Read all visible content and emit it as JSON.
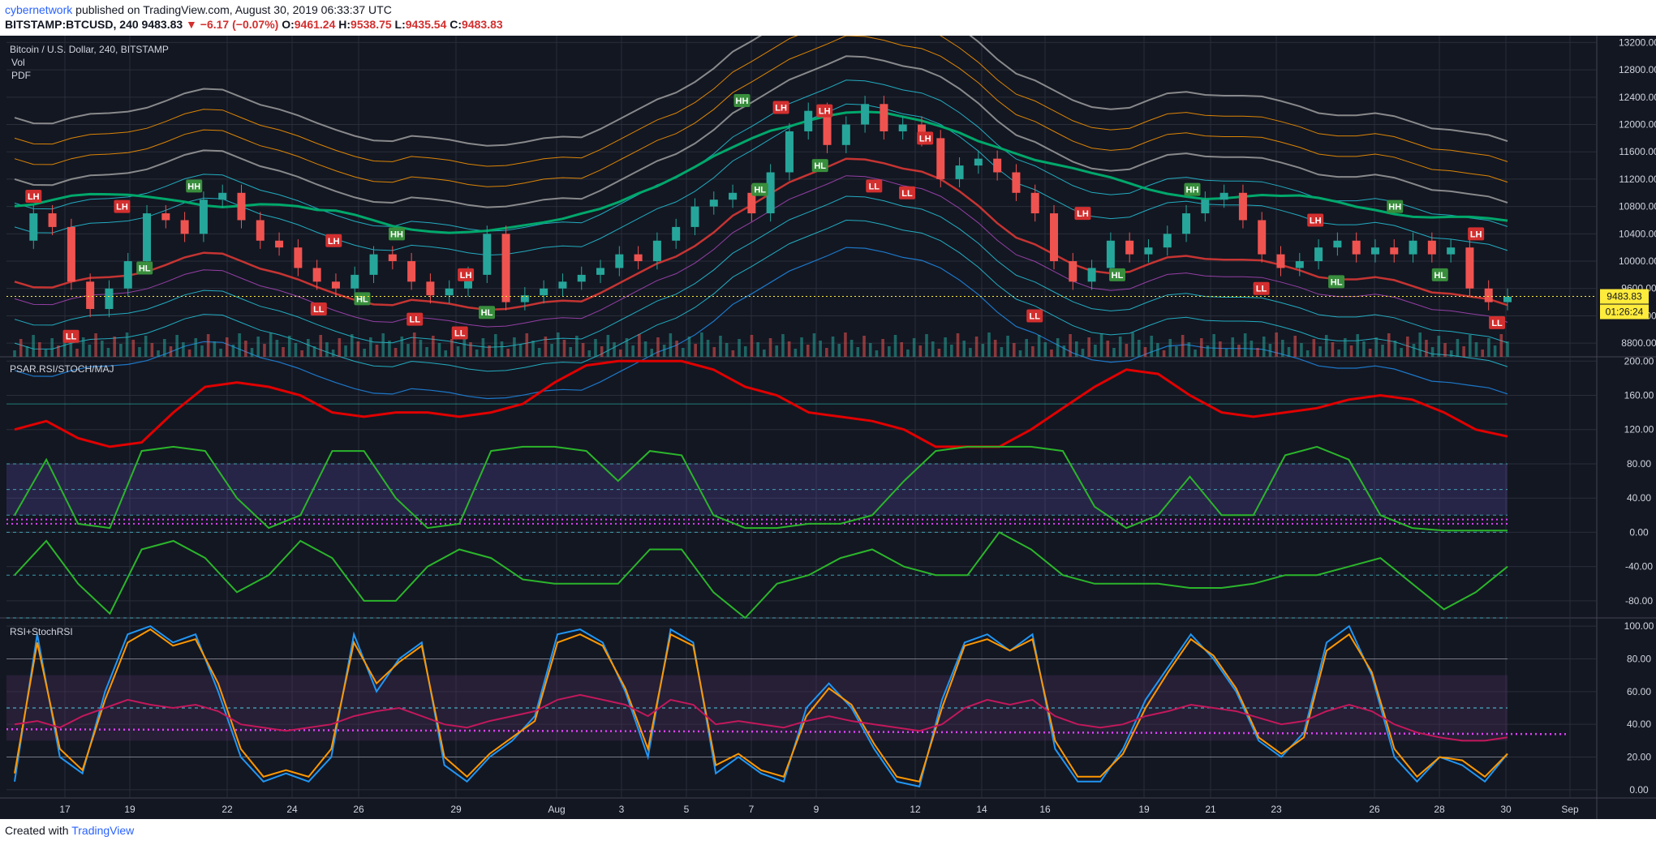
{
  "header": {
    "author": "cybernetwork",
    "published_text": "published on TradingView.com, August 30, 2019 06:33:37 UTC",
    "symbol": "BITSTAMP:BTCUSD, 240",
    "last": "9483.83",
    "change": "▼ −6.17 (−0.07%)",
    "o_label": "O:",
    "o": "9461.24",
    "h_label": "H:",
    "h": "9538.75",
    "l_label": "L:",
    "l": "9435.54",
    "c_label": "C:",
    "c": "9483.83"
  },
  "footer": {
    "created_with": "Created with",
    "brand": "TradingView"
  },
  "panels": {
    "main": {
      "title": "Bitcoin / U.S. Dollar, 240, BITSTAMP",
      "vol": "Vol",
      "pdf": "PDF",
      "price_tag": "9483.83",
      "timer_tag": "01:26:24"
    },
    "psar": {
      "title": "PSAR.RSI/STOCH/MAJ"
    },
    "rsi": {
      "title": "RSI+StochRSI"
    }
  },
  "colors": {
    "background": "#131722",
    "up": "#26a69a",
    "down": "#ef5350",
    "grid": "#2a2e39",
    "axis_text": "#d1d4dc"
  },
  "chart_data": [
    {
      "type": "candlestick",
      "title": "Bitcoin / U.S. Dollar, 240, BITSTAMP",
      "x_ticks": [
        "17",
        "19",
        "22",
        "24",
        "26",
        "29",
        "Aug",
        "3",
        "5",
        "7",
        "9",
        "12",
        "14",
        "16",
        "19",
        "21",
        "23",
        "26",
        "28",
        "30",
        "Sep"
      ],
      "y_ticks": [
        "13200.00",
        "12800.00",
        "12400.00",
        "12000.00",
        "11600.00",
        "11200.00",
        "10800.00",
        "10400.00",
        "10000.00",
        "9600.00",
        "9200.00",
        "8800.00"
      ],
      "ylim": [
        8600,
        13300
      ],
      "close_path": [
        10300,
        10700,
        10500,
        9700,
        9300,
        9600,
        10000,
        10700,
        10600,
        10400,
        10900,
        11000,
        10600,
        10300,
        10200,
        9900,
        9700,
        9600,
        9800,
        10100,
        10000,
        9700,
        9500,
        9600,
        9800,
        10400,
        9400,
        9500,
        9600,
        9700,
        9800,
        9900,
        10100,
        10000,
        10300,
        10500,
        10800,
        10900,
        11000,
        10700,
        11300,
        11900,
        12200,
        11700,
        12000,
        12300,
        11900,
        12000,
        11800,
        11200,
        11400,
        11500,
        11300,
        11000,
        10700,
        10000,
        9700,
        9900,
        10300,
        10100,
        10200,
        10400,
        10700,
        10900,
        11000,
        10600,
        10100,
        9900,
        10000,
        10200,
        10300,
        10100,
        10200,
        10100,
        10300,
        10100,
        10200,
        9600,
        9400,
        9480
      ],
      "markers": [
        {
          "label": "LH",
          "type": "high",
          "x": 0.018,
          "price": 10950
        },
        {
          "label": "LL",
          "type": "low",
          "x": 0.043,
          "price": 8900
        },
        {
          "label": "LH",
          "type": "high",
          "x": 0.077,
          "price": 10800
        },
        {
          "label": "HL",
          "type": "low",
          "x": 0.092,
          "price": 9900
        },
        {
          "label": "HH",
          "type": "high",
          "x": 0.125,
          "price": 11100
        },
        {
          "label": "LH",
          "type": "high",
          "x": 0.218,
          "price": 10300
        },
        {
          "label": "LL",
          "type": "low",
          "x": 0.208,
          "price": 9300
        },
        {
          "label": "HL",
          "type": "low",
          "x": 0.237,
          "price": 9450
        },
        {
          "label": "HH",
          "type": "high",
          "x": 0.26,
          "price": 10400
        },
        {
          "label": "LL",
          "type": "low",
          "x": 0.272,
          "price": 9150
        },
        {
          "label": "LL",
          "type": "low",
          "x": 0.302,
          "price": 8950
        },
        {
          "label": "LH",
          "type": "high",
          "x": 0.306,
          "price": 9800
        },
        {
          "label": "HL",
          "type": "low",
          "x": 0.32,
          "price": 9250
        },
        {
          "label": "HH",
          "type": "high",
          "x": 0.49,
          "price": 12350
        },
        {
          "label": "HL",
          "type": "low",
          "x": 0.502,
          "price": 11050
        },
        {
          "label": "LH",
          "type": "high",
          "x": 0.516,
          "price": 12250
        },
        {
          "label": "HL",
          "type": "low",
          "x": 0.542,
          "price": 11400
        },
        {
          "label": "LH",
          "type": "high",
          "x": 0.545,
          "price": 12200
        },
        {
          "label": "LL",
          "type": "low",
          "x": 0.578,
          "price": 11100
        },
        {
          "label": "LL",
          "type": "low",
          "x": 0.6,
          "price": 11000
        },
        {
          "label": "LH",
          "type": "high",
          "x": 0.612,
          "price": 11800
        },
        {
          "label": "LL",
          "type": "low",
          "x": 0.685,
          "price": 9200
        },
        {
          "label": "LH",
          "type": "high",
          "x": 0.717,
          "price": 10700
        },
        {
          "label": "HL",
          "type": "low",
          "x": 0.74,
          "price": 9800
        },
        {
          "label": "HH",
          "type": "high",
          "x": 0.79,
          "price": 11050
        },
        {
          "label": "LL",
          "type": "low",
          "x": 0.836,
          "price": 9600
        },
        {
          "label": "LH",
          "type": "high",
          "x": 0.872,
          "price": 10600
        },
        {
          "label": "HL",
          "type": "low",
          "x": 0.886,
          "price": 9700
        },
        {
          "label": "HH",
          "type": "high",
          "x": 0.925,
          "price": 10800
        },
        {
          "label": "HL",
          "type": "low",
          "x": 0.955,
          "price": 9800
        },
        {
          "label": "LH",
          "type": "high",
          "x": 0.979,
          "price": 10400
        },
        {
          "label": "LL",
          "type": "low",
          "x": 0.993,
          "price": 9100
        }
      ]
    },
    {
      "type": "line",
      "title": "PSAR.RSI/STOCH/MAJ",
      "y_ticks": [
        "200.00",
        "160.00",
        "120.00",
        "80.00",
        "40.00",
        "0.00",
        "-40.00",
        "-80.00"
      ],
      "ylim": [
        -100,
        205
      ],
      "series": [
        {
          "color": "#e00000",
          "values": [
            120,
            130,
            110,
            100,
            105,
            140,
            170,
            175,
            170,
            160,
            140,
            135,
            140,
            140,
            135,
            140,
            150,
            175,
            195,
            200,
            200,
            200,
            190,
            170,
            160,
            140,
            135,
            130,
            120,
            100,
            100,
            100,
            120,
            145,
            170,
            190,
            185,
            160,
            140,
            135,
            140,
            145,
            155,
            160,
            155,
            140,
            120,
            112
          ]
        },
        {
          "color": "#2bb52b",
          "values": [
            20,
            85,
            10,
            5,
            95,
            100,
            95,
            40,
            5,
            20,
            95,
            95,
            40,
            5,
            10,
            95,
            100,
            100,
            95,
            60,
            95,
            90,
            20,
            5,
            5,
            10,
            10,
            20,
            60,
            95,
            100,
            100,
            100,
            95,
            30,
            5,
            20,
            65,
            20,
            20,
            90,
            100,
            85,
            20,
            5,
            2,
            2,
            2
          ]
        },
        {
          "color": "#2bb52b",
          "values": [
            -50,
            -10,
            -60,
            -95,
            -20,
            -10,
            -30,
            -70,
            -50,
            -10,
            -30,
            -80,
            -80,
            -40,
            -20,
            -30,
            -55,
            -60,
            -60,
            -60,
            -20,
            -20,
            -70,
            -100,
            -60,
            -50,
            -30,
            -20,
            -40,
            -50,
            -50,
            0,
            -20,
            -50,
            -60,
            -60,
            -60,
            -65,
            -65,
            -60,
            -50,
            -50,
            -40,
            -30,
            -60,
            -90,
            -70,
            -40
          ]
        }
      ]
    },
    {
      "type": "line",
      "title": "RSI+StochRSI",
      "y_ticks": [
        "100.00",
        "80.00",
        "60.00",
        "40.00",
        "20.00",
        "0.00"
      ],
      "ylim": [
        -5,
        105
      ],
      "series": [
        {
          "color": "#2196f3",
          "values": [
            5,
            95,
            20,
            10,
            60,
            95,
            100,
            90,
            95,
            60,
            20,
            5,
            10,
            5,
            20,
            95,
            60,
            80,
            90,
            15,
            5,
            20,
            30,
            45,
            95,
            98,
            90,
            60,
            20,
            98,
            90,
            10,
            20,
            10,
            5,
            50,
            65,
            50,
            25,
            5,
            2,
            55,
            90,
            95,
            85,
            95,
            25,
            5,
            5,
            25,
            55,
            75,
            95,
            80,
            60,
            30,
            20,
            35,
            90,
            100,
            70,
            20,
            5,
            20,
            15,
            5,
            22
          ]
        },
        {
          "color": "#ff9800",
          "values": [
            10,
            90,
            25,
            12,
            55,
            90,
            98,
            88,
            92,
            65,
            25,
            8,
            12,
            8,
            25,
            90,
            65,
            78,
            88,
            20,
            8,
            22,
            32,
            42,
            90,
            95,
            88,
            62,
            25,
            95,
            88,
            15,
            22,
            12,
            8,
            45,
            62,
            52,
            28,
            8,
            5,
            50,
            88,
            92,
            85,
            92,
            30,
            8,
            8,
            22,
            50,
            72,
            92,
            82,
            62,
            32,
            22,
            32,
            85,
            95,
            72,
            25,
            8,
            20,
            18,
            8,
            22
          ]
        },
        {
          "color": "#c2185b",
          "values": [
            40,
            42,
            38,
            45,
            50,
            55,
            52,
            50,
            52,
            48,
            40,
            38,
            36,
            38,
            40,
            45,
            48,
            50,
            45,
            40,
            38,
            42,
            45,
            48,
            55,
            58,
            55,
            52,
            45,
            55,
            52,
            40,
            42,
            40,
            38,
            42,
            45,
            42,
            40,
            38,
            36,
            40,
            50,
            55,
            52,
            55,
            45,
            40,
            38,
            40,
            45,
            48,
            52,
            50,
            48,
            44,
            40,
            42,
            48,
            52,
            48,
            40,
            35,
            32,
            30,
            30,
            32
          ]
        }
      ]
    }
  ]
}
